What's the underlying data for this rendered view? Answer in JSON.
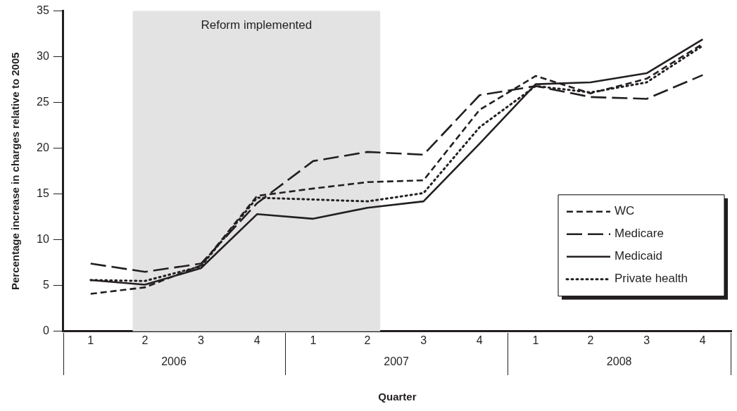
{
  "chart_data": {
    "type": "line",
    "xlabel": "Quarter",
    "ylabel": "Percentage increase in charges relative to 2005",
    "x": [
      "2006-02-15",
      "2006-05-15",
      "2006-08-15",
      "2006-11-15",
      "2007-02-15",
      "2007-05-15",
      "2007-08-15",
      "2007-11-15",
      "2008-02-15",
      "2008-05-15",
      "2008-08-15",
      "2008-11-15"
    ],
    "xlim": [
      "2006-01-01",
      "2009-01-01"
    ],
    "xticks": [
      {
        "value": "2006-02-15",
        "label": "1"
      },
      {
        "value": "2006-05-15",
        "label": "2"
      },
      {
        "value": "2006-08-15",
        "label": "3"
      },
      {
        "value": "2006-11-15",
        "label": "4"
      },
      {
        "value": "2007-02-15",
        "label": "1"
      },
      {
        "value": "2007-05-15",
        "label": "2"
      },
      {
        "value": "2007-08-15",
        "label": "3"
      },
      {
        "value": "2007-11-15",
        "label": "4"
      },
      {
        "value": "2008-02-15",
        "label": "1"
      },
      {
        "value": "2008-05-15",
        "label": "2"
      },
      {
        "value": "2008-08-15",
        "label": "3"
      },
      {
        "value": "2008-11-15",
        "label": "4"
      }
    ],
    "ylim": [
      0,
      35
    ],
    "yticks": [
      0,
      5,
      10,
      15,
      20,
      25,
      30,
      35
    ],
    "series": [
      {
        "name": "WC",
        "color": "#231f20",
        "line_style": "dashed",
        "values": [
          4.1,
          4.8,
          7.2,
          14.8,
          15.6,
          16.3,
          16.5,
          24.2,
          27.9,
          26.0,
          27.6,
          31.4
        ]
      },
      {
        "name": "Medicare",
        "color": "#231f20",
        "line_style": "longdash",
        "values": [
          7.4,
          6.5,
          7.4,
          14.0,
          18.6,
          19.6,
          19.3,
          25.8,
          26.8,
          25.6,
          25.4,
          28.0
        ]
      },
      {
        "name": "Medicaid",
        "color": "#231f20",
        "line_style": "solid",
        "values": [
          5.6,
          5.1,
          6.9,
          12.8,
          12.3,
          13.5,
          14.2,
          20.5,
          27.0,
          27.2,
          28.2,
          31.9
        ]
      },
      {
        "name": "Private health",
        "color": "#231f20",
        "line_style": "dotted",
        "values": [
          5.6,
          5.5,
          7.1,
          14.6,
          14.4,
          14.2,
          15.1,
          22.3,
          26.8,
          26.1,
          27.2,
          31.2
        ]
      }
    ],
    "bands": [
      {
        "axis": "x",
        "from": "2006-04-25",
        "to": "2007-06-05",
        "label": "Reform implemented",
        "color": "#e3e3e3"
      }
    ],
    "annotations": [
      "2006",
      "2007",
      "2008"
    ],
    "legend": "bottom right",
    "grid": false,
    "marker": "none"
  }
}
